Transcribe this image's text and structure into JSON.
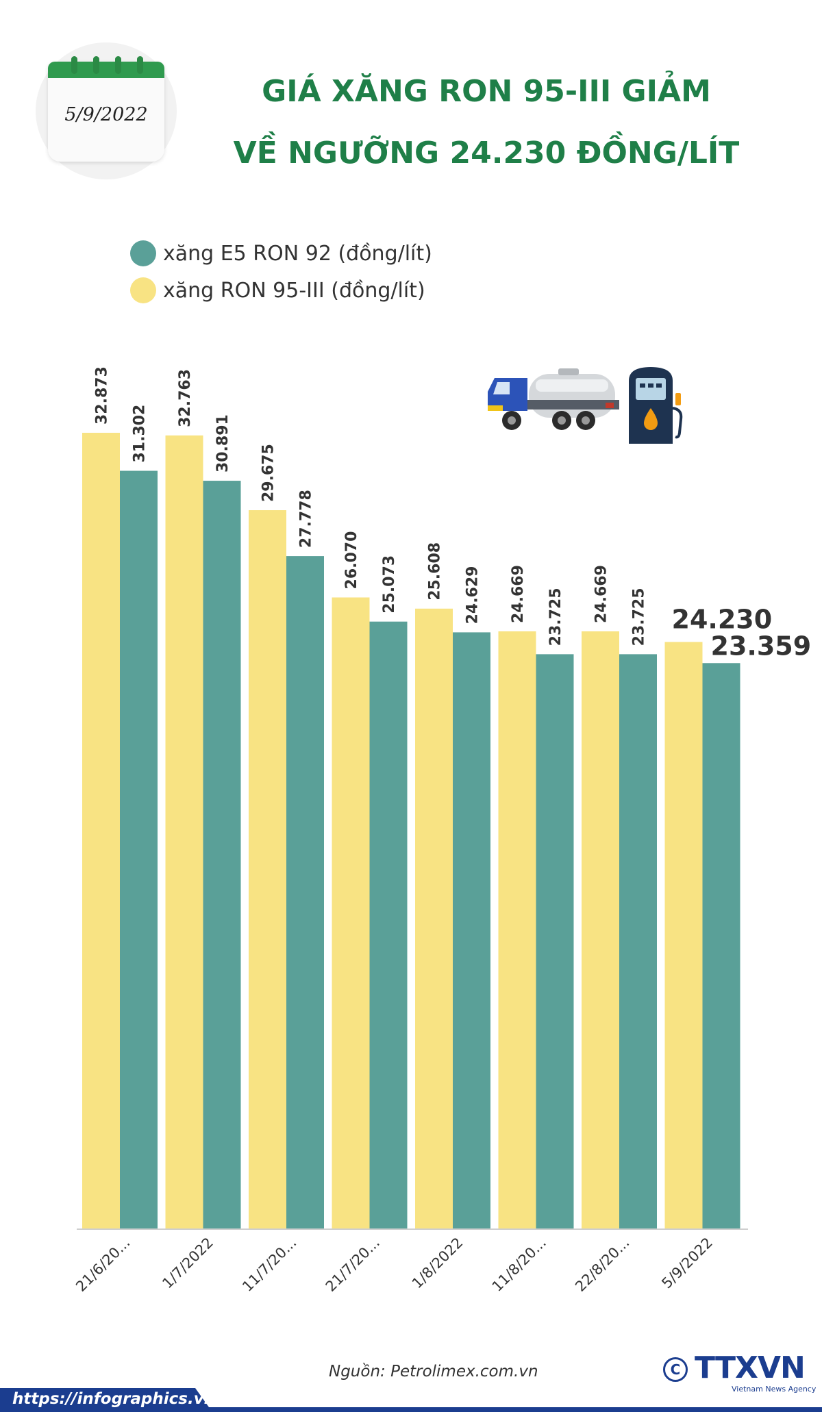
{
  "calendar": {
    "date": "5/9/2022"
  },
  "title": {
    "line1": "GIÁ XĂNG RON 95-III GIẢM",
    "line2": "VỀ NGƯỠNG 24.230 ĐỒNG/LÍT"
  },
  "colors": {
    "ron95": "#f8e383",
    "e5": "#5aa098",
    "title": "#1f7f48",
    "brand": "#1b3d8f"
  },
  "icons": [
    "tanker-truck-icon",
    "fuel-pump-icon"
  ],
  "source": "Nguồn: Petrolimex.com.vn",
  "logo": {
    "copyright": "C",
    "name": "TTXVN",
    "sub": "Vietnam News Agency"
  },
  "footer": {
    "url": "https://infographics.vn"
  },
  "chart_data": {
    "type": "bar",
    "title": "GIÁ XĂNG RON 95-III GIẢM VỀ NGƯỠNG 24.230 ĐỒNG/LÍT",
    "categories": [
      "21/6/20...",
      "1/7/2022",
      "11/7/20...",
      "21/7/20...",
      "1/8/2022",
      "11/8/20...",
      "22/8/20...",
      "5/9/2022"
    ],
    "series": [
      {
        "name": "xăng RON 95-III (đồng/lít)",
        "color": "#f8e383",
        "values": [
          32873,
          32763,
          29675,
          26070,
          25608,
          24669,
          24669,
          24230
        ],
        "labels": [
          "32.873",
          "32.763",
          "29.675",
          "26.070",
          "25.608",
          "24.669",
          "24.669",
          "24.230"
        ]
      },
      {
        "name": "xăng E5 RON 92 (đồng/lít)",
        "color": "#5aa098",
        "values": [
          31302,
          30891,
          27778,
          25073,
          24629,
          23725,
          23725,
          23359
        ],
        "labels": [
          "31.302",
          "30.891",
          "27.778",
          "25.073",
          "24.629",
          "23.725",
          "23.725",
          "23.359"
        ]
      }
    ],
    "legend_order": [
      "xăng E5 RON 92 (đồng/lít)",
      "xăng RON 95-III (đồng/lít)"
    ],
    "ylim": [
      0,
      32873
    ],
    "grid": false,
    "legend_position": "top-left"
  }
}
